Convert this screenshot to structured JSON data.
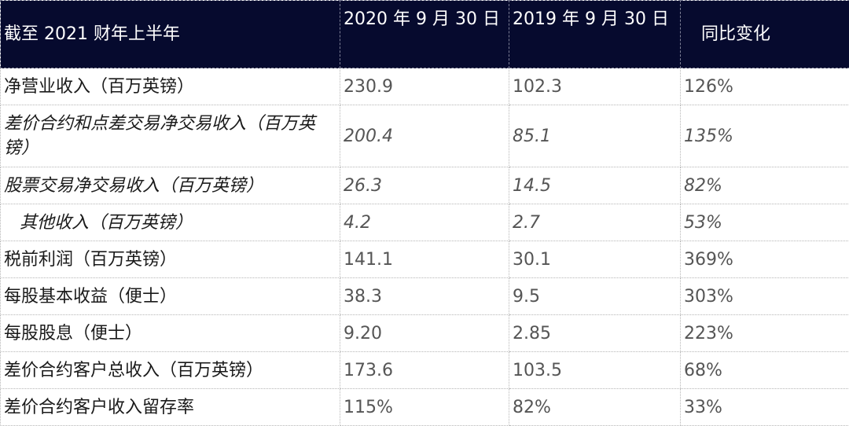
{
  "table": {
    "headers": [
      "截至 2021 财年上半年",
      "2020 年 9 月 30 日",
      "2019 年 9 月 30 日",
      "同比变化"
    ],
    "rows": [
      {
        "label": "净营业收入（百万英镑）",
        "v2020": "230.9",
        "v2019": "102.3",
        "change": "126%"
      },
      {
        "label": "差价合约和点差交易净交易收入（百万英镑）",
        "v2020": "200.4",
        "v2019": "85.1",
        "change": "135%"
      },
      {
        "label": "股票交易净交易收入（百万英镑）",
        "v2020": "26.3",
        "v2019": "14.5",
        "change": "82%"
      },
      {
        "label": "其他收入（百万英镑）",
        "v2020": "4.2",
        "v2019": "2.7",
        "change": "53%"
      },
      {
        "label": "税前利润（百万英镑）",
        "v2020": "141.1",
        "v2019": "30.1",
        "change": "369%"
      },
      {
        "label": "每股基本收益（便士）",
        "v2020": "38.3",
        "v2019": "9.5",
        "change": "303%"
      },
      {
        "label": "每股股息（便士）",
        "v2020": "9.20",
        "v2019": "2.85",
        "change": "223%"
      },
      {
        "label": "差价合约客户总收入（百万英镑）",
        "v2020": "173.6",
        "v2019": "103.5",
        "change": "68%"
      },
      {
        "label": "差价合约客户收入留存率",
        "v2020": "115%",
        "v2019": "82%",
        "change": "33%"
      }
    ]
  }
}
